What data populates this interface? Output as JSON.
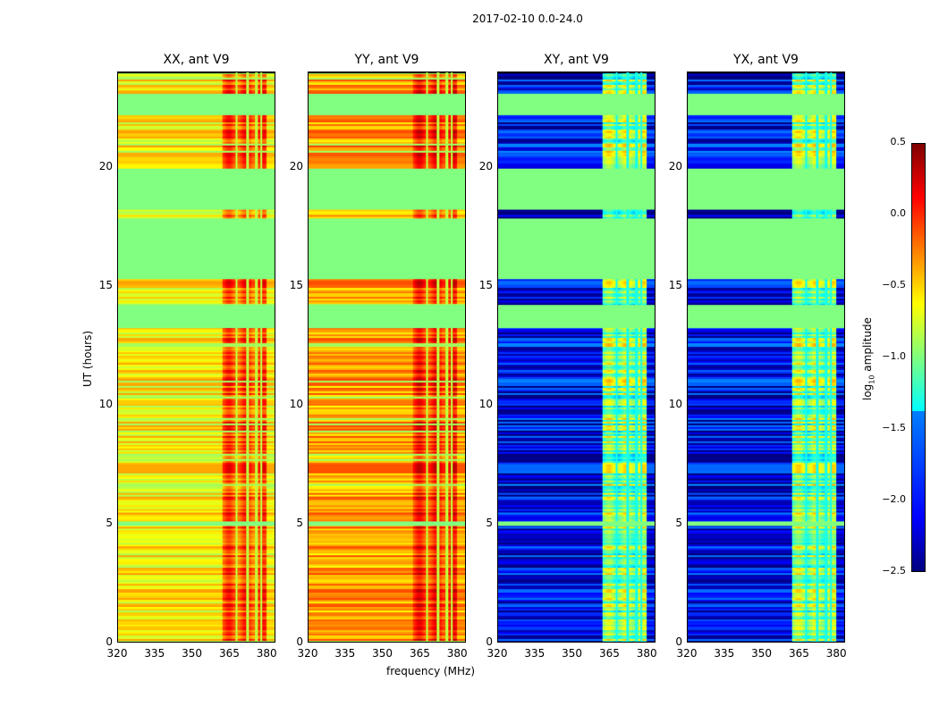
{
  "chart_data": {
    "type": "heatmap",
    "title": "2017-02-10 0.0-24.0",
    "xlabel": "frequency (MHz)",
    "ylabel": "UT (hours)",
    "xlim": [
      320,
      383.5
    ],
    "ylim": [
      0,
      24
    ],
    "xticks": [
      "320",
      "335",
      "350",
      "365",
      "380"
    ],
    "xtick_values": [
      320,
      335,
      350,
      365,
      380
    ],
    "yticks": [
      "0",
      "5",
      "10",
      "15",
      "20"
    ],
    "ytick_values": [
      0,
      5,
      10,
      15,
      20
    ],
    "colorbar": {
      "label": "log10 amplitude",
      "label_main": "log",
      "label_sub": "10",
      "label_rest": " amplitude",
      "range": [
        -2.5,
        0.5
      ],
      "ticks": [
        "0.5",
        "0.0",
        "−0.5",
        "−1.0",
        "−1.5",
        "−2.0",
        "−2.5"
      ],
      "tick_values": [
        0.5,
        0.0,
        -0.5,
        -1.0,
        -1.5,
        -2.0,
        -2.5
      ],
      "colormap": "jet"
    },
    "flagged_intervals_hours": [
      [
        22.2,
        23.1
      ],
      [
        18.25,
        19.95
      ],
      [
        15.3,
        17.85
      ],
      [
        13.25,
        14.2
      ],
      [
        4.9,
        5.1
      ]
    ],
    "flag_value": -1.0,
    "bright_band_mhz": [
      362,
      380
    ],
    "panels": [
      {
        "title": "XX, ant V9",
        "base_level": -0.6,
        "band_level": -0.15
      },
      {
        "title": "YY, ant V9",
        "base_level": -0.35,
        "band_level": -0.05
      },
      {
        "title": "XY, ant V9",
        "base_level": -2.2,
        "band_level": -1.0
      },
      {
        "title": "YX, ant V9",
        "base_level": -2.2,
        "band_level": -1.0
      }
    ]
  }
}
